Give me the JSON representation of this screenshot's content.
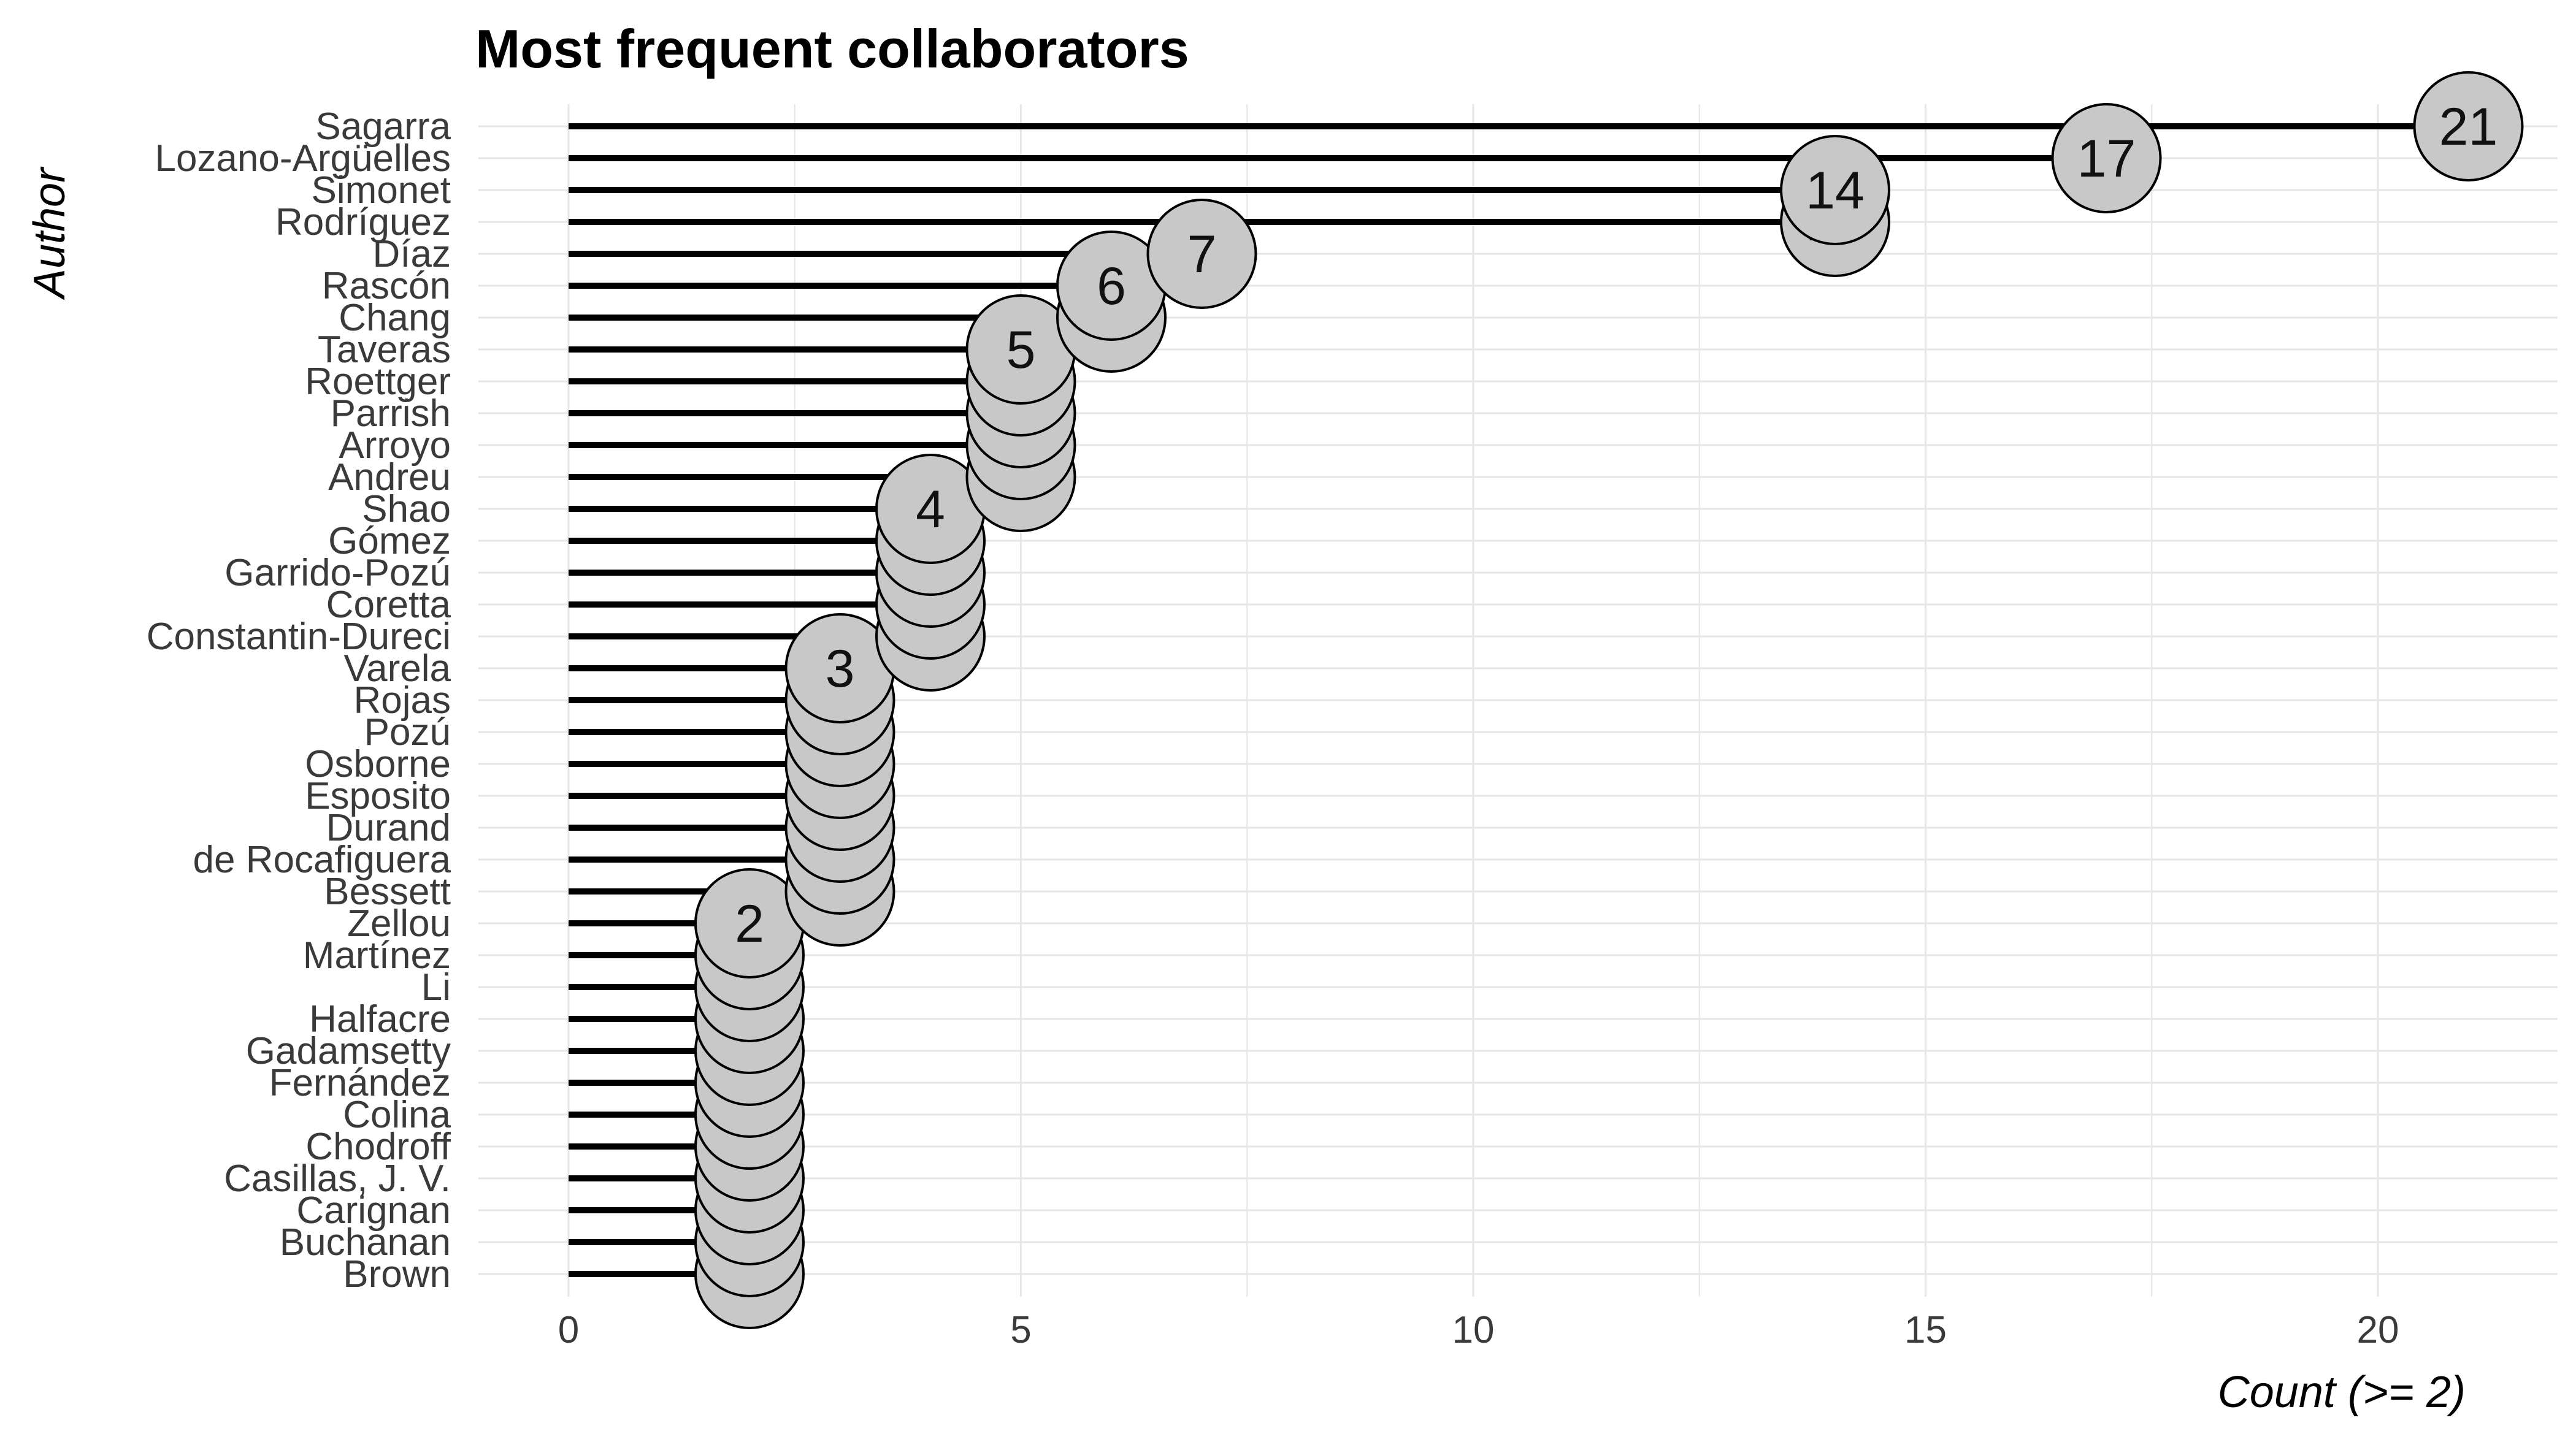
{
  "chart_data": {
    "type": "lollipop",
    "title": "Most frequent collaborators",
    "xlabel": "Count (>= 2)",
    "ylabel": "Author",
    "xlim": [
      0,
      22
    ],
    "xticks": [
      0,
      5,
      10,
      15,
      20
    ],
    "grid": true,
    "legend": "none",
    "colors": {
      "stem": "#000000",
      "point_fill": "#c8c8c8",
      "point_stroke": "#000000",
      "grid": "#e6e6e6"
    },
    "categories": [
      "Sagarra",
      "Lozano-Argüelles",
      "Simonet",
      "Rodríguez",
      "Díaz",
      "Rascón",
      "Chang",
      "Taveras",
      "Roettger",
      "Parrish",
      "Arroyo",
      "Andreu",
      "Shao",
      "Gómez",
      "Garrido-Pozú",
      "Coretta",
      "Constantin-Dureci",
      "Varela",
      "Rojas",
      "Pozú",
      "Osborne",
      "Esposito",
      "Durand",
      "de Rocafiguera",
      "Bessett",
      "Zellou",
      "Martínez",
      "Li",
      "Halfacre",
      "Gadamsetty",
      "Fernández",
      "Colina",
      "Chodroff",
      "Casillas, J. V.",
      "Carignan",
      "Buchanan",
      "Brown"
    ],
    "values": [
      21,
      17,
      14,
      14,
      7,
      6,
      6,
      5,
      5,
      5,
      5,
      5,
      4,
      4,
      4,
      4,
      4,
      3,
      3,
      3,
      3,
      3,
      3,
      3,
      3,
      2,
      2,
      2,
      2,
      2,
      2,
      2,
      2,
      2,
      2,
      2,
      2
    ]
  }
}
